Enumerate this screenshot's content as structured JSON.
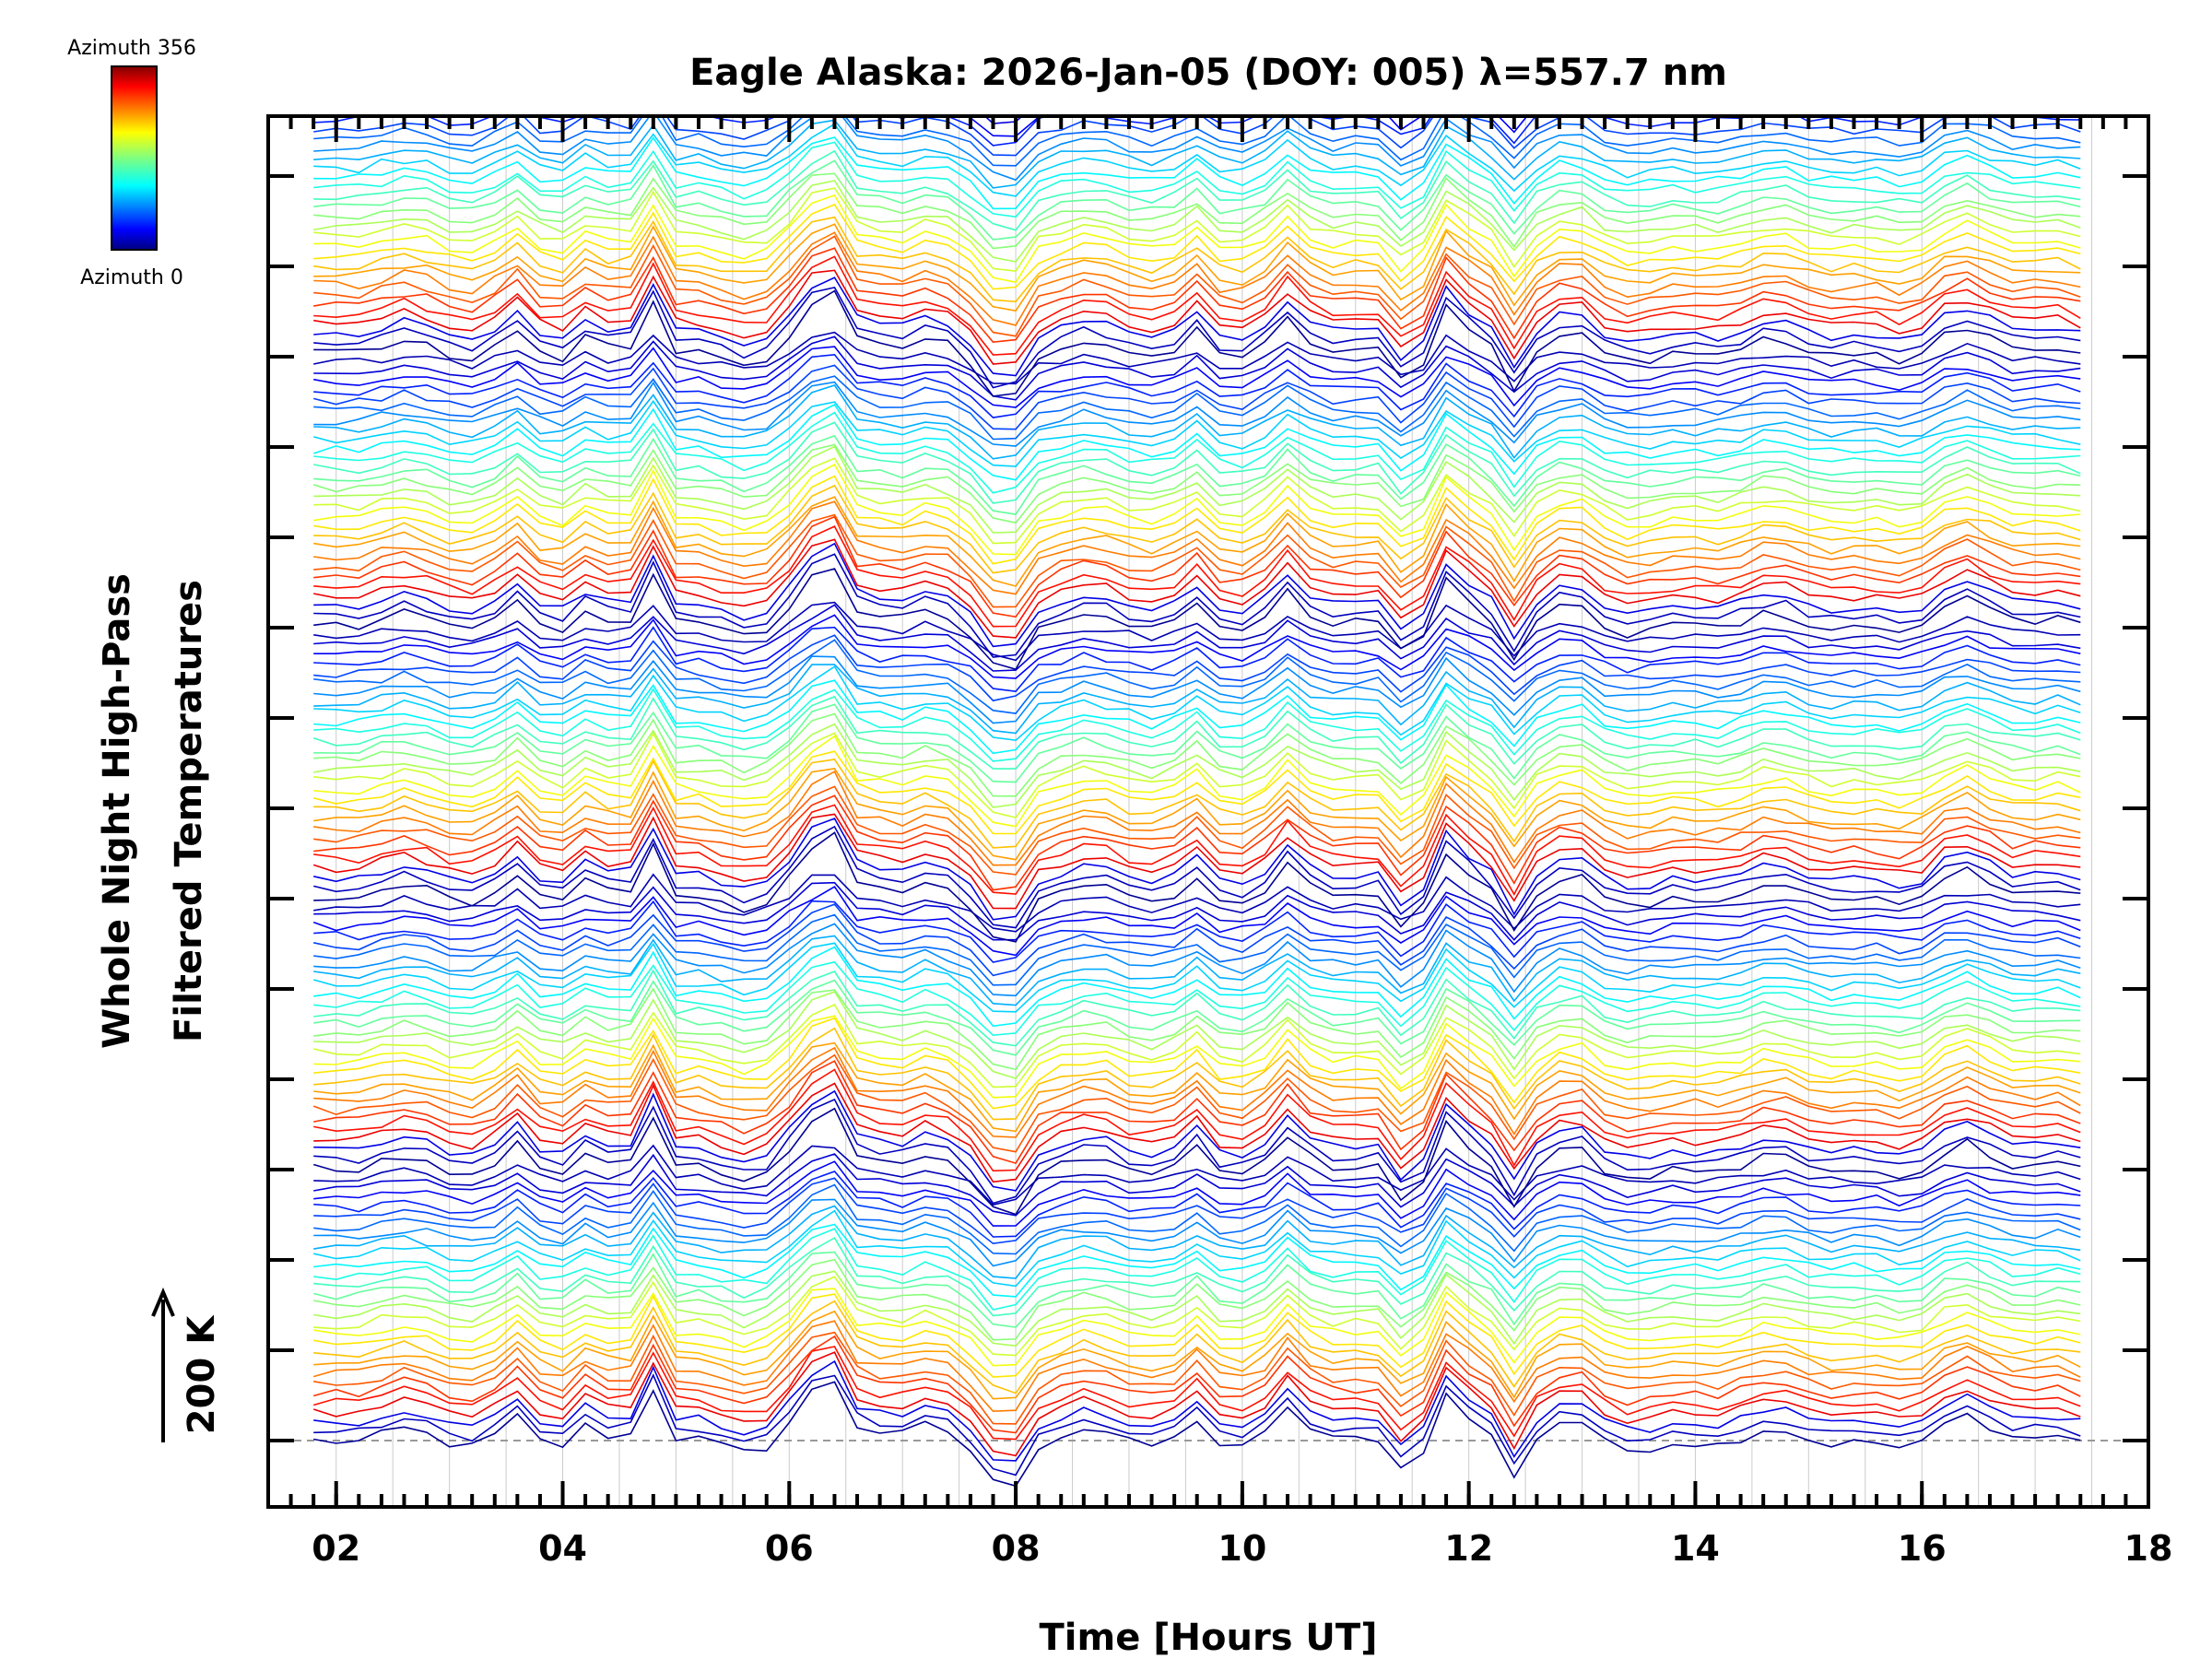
{
  "chart_data": {
    "type": "line",
    "title": "Eagle Alaska: 2026-Jan-05 (DOY: 005) λ=557.7 nm",
    "xlabel": "Time [Hours UT]",
    "ylabel_line1": "Whole Night High-Pass",
    "ylabel_line2": "Filtered Temperatures",
    "scale_label": "200 K",
    "xlim": [
      1.4,
      18
    ],
    "x_ticks": [
      2,
      4,
      6,
      8,
      10,
      12,
      14,
      16,
      18
    ],
    "x_tick_labels": [
      "02",
      "04",
      "06",
      "08",
      "10",
      "12",
      "14",
      "16",
      "18"
    ],
    "y_major_ticks": 15,
    "time_start": 1.8,
    "time_end": 17.5,
    "time_step": 0.2,
    "num_series": 140,
    "series_group_size": 28,
    "series_spacing_K": 27,
    "colorbar": {
      "top_label": "Azimuth  356",
      "bottom_label": "Azimuth  0",
      "min_azimuth": 0,
      "max_azimuth": 356
    },
    "common_signal_events": [
      {
        "t": 3.6,
        "amp": 45,
        "width": 0.18
      },
      {
        "t": 4.3,
        "amp": 120,
        "width": 0.07
      },
      {
        "t": 4.45,
        "amp": -70,
        "width": 0.05
      },
      {
        "t": 4.85,
        "amp": 140,
        "width": 0.07
      },
      {
        "t": 6.2,
        "amp": 70,
        "width": 0.2
      },
      {
        "t": 6.45,
        "amp": 80,
        "width": 0.12
      },
      {
        "t": 7.3,
        "amp": 65,
        "width": 0.12
      },
      {
        "t": 7.9,
        "amp": -90,
        "width": 0.18
      },
      {
        "t": 9.6,
        "amp": 40,
        "width": 0.15
      },
      {
        "t": 10.4,
        "amp": 40,
        "width": 0.15
      },
      {
        "t": 11.4,
        "amp": -40,
        "width": 0.12
      },
      {
        "t": 11.85,
        "amp": 100,
        "width": 0.15
      },
      {
        "t": 12.4,
        "amp": -60,
        "width": 0.1
      },
      {
        "t": 12.9,
        "amp": 45,
        "width": 0.1
      },
      {
        "t": 16.3,
        "amp": 30,
        "width": 0.3
      }
    ],
    "colors": {
      "axis": "#000000",
      "grid": "#cccccc",
      "baseline": "#999999"
    }
  }
}
